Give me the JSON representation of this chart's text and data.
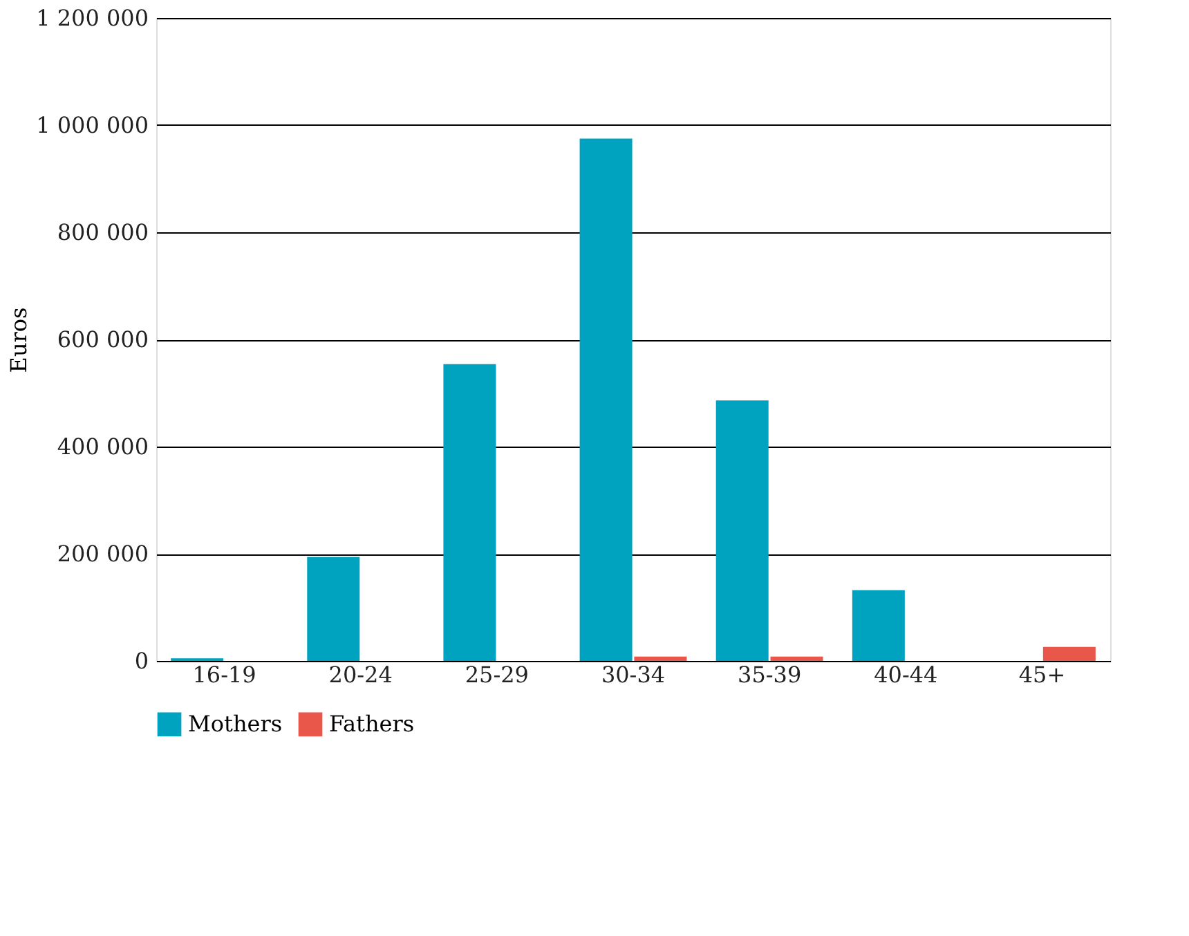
{
  "chart_data": {
    "type": "bar",
    "ylabel": "Euros",
    "categories": [
      "16-19",
      "20-24",
      "25-29",
      "30-34",
      "35-39",
      "40-44",
      "45+"
    ],
    "series": [
      {
        "name": "Mothers",
        "color": "#00a3bf",
        "values": [
          5000,
          194000,
          554000,
          975000,
          486000,
          132000,
          0
        ]
      },
      {
        "name": "Fathers",
        "color": "#e8574a",
        "values": [
          0,
          0,
          0,
          8000,
          8000,
          0,
          26000
        ]
      }
    ],
    "ylim": [
      0,
      1200000
    ],
    "yticks": [
      {
        "value": 0,
        "label": "0"
      },
      {
        "value": 200000,
        "label": "200 000"
      },
      {
        "value": 400000,
        "label": "400 000"
      },
      {
        "value": 600000,
        "label": "600 000"
      },
      {
        "value": 800000,
        "label": "800 000"
      },
      {
        "value": 1000000,
        "label": "1 000 000"
      },
      {
        "value": 1200000,
        "label": "1 200 000"
      }
    ],
    "grid": "y",
    "legend": "bottom"
  }
}
